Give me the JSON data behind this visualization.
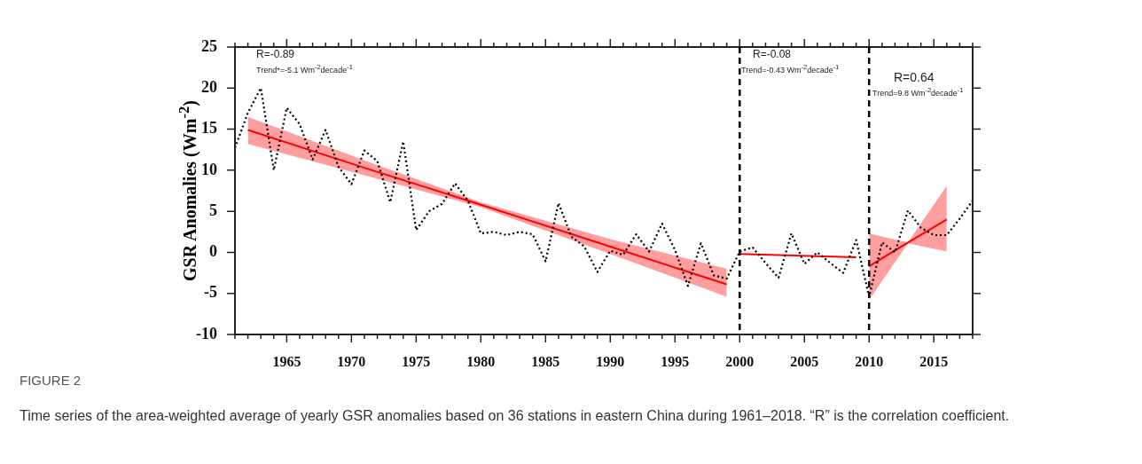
{
  "chart_data": {
    "type": "line",
    "ylabel": "GSR Anomalies (Wm$^{-2}$)",
    "x": [
      1961,
      1962,
      1963,
      1964,
      1965,
      1966,
      1967,
      1968,
      1969,
      1970,
      1971,
      1972,
      1973,
      1974,
      1975,
      1976,
      1977,
      1978,
      1979,
      1980,
      1981,
      1982,
      1983,
      1984,
      1985,
      1986,
      1987,
      1988,
      1989,
      1990,
      1991,
      1992,
      1993,
      1994,
      1995,
      1996,
      1997,
      1998,
      1999,
      2000,
      2001,
      2002,
      2003,
      2004,
      2005,
      2006,
      2007,
      2008,
      2009,
      2010,
      2011,
      2012,
      2013,
      2014,
      2015,
      2016,
      2017,
      2018
    ],
    "series": [
      {
        "color": "#000000",
        "line_style": "dotted",
        "values": [
          12.7,
          17,
          20,
          10,
          17.6,
          15.6,
          11.3,
          14.9,
          10.4,
          8.3,
          12.4,
          11.1,
          6.1,
          13.5,
          2.7,
          5,
          5.9,
          8.4,
          6.3,
          2.3,
          2.5,
          2.1,
          2.5,
          2.2,
          -1.1,
          6,
          1.9,
          0.7,
          -2.4,
          0.2,
          -0.3,
          2.2,
          0.1,
          3.5,
          0.3,
          -4.1,
          1.1,
          -2.8,
          -3.2,
          0.1,
          0.6,
          -1.3,
          -3.1,
          2.3,
          -1.4,
          0,
          -1.3,
          -2.5,
          1.5,
          -5.4,
          1.2,
          0,
          5.1,
          3,
          2.1,
          2.1,
          4.1,
          6.3
        ]
      },
      {
        "type": "line",
        "color": "#ff0000",
        "x": [
          1962,
          1971,
          1980,
          1990,
          1999
        ],
        "values": [
          14.9,
          10.3,
          5.8,
          0.7,
          -3.9
        ],
        "lower": [
          13.2,
          9.4,
          5.5,
          -0.2,
          -5.4
        ],
        "upper": [
          16.5,
          11.2,
          6.1,
          1.6,
          -2.0
        ]
      },
      {
        "type": "line",
        "color": "#ff0000",
        "x": [
          2000,
          2009
        ],
        "values": [
          -0.2,
          -0.6
        ]
      },
      {
        "type": "line",
        "color": "#ff0000",
        "x": [
          2010,
          2013,
          2016
        ],
        "values": [
          -1.7,
          1.2,
          4.0
        ],
        "lower": [
          -5.8,
          1.1,
          0.1
        ],
        "upper": [
          2.3,
          1.2,
          8.1
        ]
      }
    ],
    "xlim": [
      1961,
      2018
    ],
    "xticks": [
      {
        "value": 1961,
        "label": null
      },
      {
        "value": 1962,
        "label": null
      },
      {
        "value": 1963,
        "label": null
      },
      {
        "value": 1964,
        "label": null
      },
      1965,
      {
        "value": 1966,
        "label": null
      },
      {
        "value": 1967,
        "label": null
      },
      {
        "value": 1968,
        "label": null
      },
      {
        "value": 1969,
        "label": null
      },
      1970,
      {
        "value": 1971,
        "label": null
      },
      {
        "value": 1972,
        "label": null
      },
      {
        "value": 1973,
        "label": null
      },
      {
        "value": 1974,
        "label": null
      },
      1975,
      {
        "value": 1976,
        "label": null
      },
      {
        "value": 1977,
        "label": null
      },
      {
        "value": 1978,
        "label": null
      },
      {
        "value": 1979,
        "label": null
      },
      1980,
      {
        "value": 1981,
        "label": null
      },
      {
        "value": 1982,
        "label": null
      },
      {
        "value": 1983,
        "label": null
      },
      {
        "value": 1984,
        "label": null
      },
      1985,
      {
        "value": 1986,
        "label": null
      },
      {
        "value": 1987,
        "label": null
      },
      {
        "value": 1988,
        "label": null
      },
      {
        "value": 1989,
        "label": null
      },
      1990,
      {
        "value": 1991,
        "label": null
      },
      {
        "value": 1992,
        "label": null
      },
      {
        "value": 1993,
        "label": null
      },
      {
        "value": 1994,
        "label": null
      },
      1995,
      {
        "value": 1996,
        "label": null
      },
      {
        "value": 1997,
        "label": null
      },
      {
        "value": 1998,
        "label": null
      },
      {
        "value": 1999,
        "label": null
      },
      2000,
      {
        "value": 2001,
        "label": null
      },
      {
        "value": 2002,
        "label": null
      },
      {
        "value": 2003,
        "label": null
      },
      {
        "value": 2004,
        "label": null
      },
      2005,
      {
        "value": 2006,
        "label": null
      },
      {
        "value": 2007,
        "label": null
      },
      {
        "value": 2008,
        "label": null
      },
      {
        "value": 2009,
        "label": null
      },
      2010,
      {
        "value": 2011,
        "label": null
      },
      {
        "value": 2012,
        "label": null
      },
      {
        "value": 2013,
        "label": null
      },
      {
        "value": 2014,
        "label": null
      },
      2015,
      {
        "value": 2016,
        "label": null
      },
      {
        "value": 2017,
        "label": null
      },
      {
        "value": 2018,
        "label": null
      }
    ],
    "ylim": [
      -10,
      25
    ],
    "yticks": [
      -10,
      -5,
      0,
      5,
      10,
      15,
      20,
      25
    ],
    "ref_lines": [
      {
        "axis": "x",
        "value": 2000,
        "color": "#000000",
        "line_style": "dashed"
      },
      {
        "axis": "x",
        "value": 2010,
        "color": "#000000",
        "line_style": "dashed"
      }
    ],
    "grid": false,
    "legend": false,
    "marker": "none",
    "annotations": [
      "R=-0.89",
      "Trend*=-5.1 Wm$^{-2}$decade$^{-1}$",
      "R=-0.08",
      "Trend=-0.43 Wm$^{-2}$decade$^{-1}$",
      "R=0.64",
      "Trend=9.8 Wm$^{-2}$decade$^{-1}$",
      "FIGURE 2",
      "Time series of the area-weighted average of yearly GSR anomalies based on 36 stations in eastern China during 1961–2018. “R” is the correlation coefficient."
    ]
  }
}
